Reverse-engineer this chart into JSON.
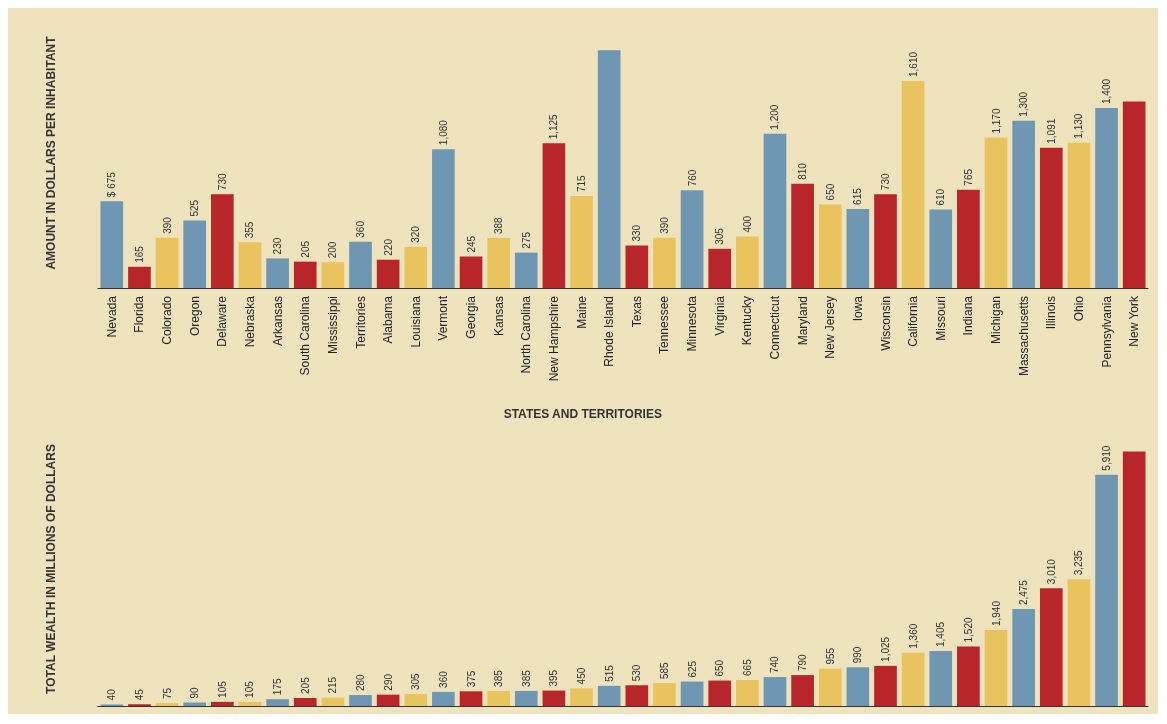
{
  "chart_data": [
    {
      "type": "bar",
      "ylabel": "AMOUNT IN DOLLARS PER INHABITANT",
      "xlabel": "STATES AND TERRITORIES",
      "tick_labels": "x",
      "categories": [
        "Nevada",
        "Florida",
        "Colorado",
        "Oregon",
        "Delaware",
        "Nebraska",
        "Arkansas",
        "South Carolina",
        "Mississippi",
        "Territories",
        "Alabama",
        "Louisiana",
        "Vermont",
        "Georgia",
        "Kansas",
        "North Carolina",
        "New Hampshire",
        "Maine",
        "Rhode Island",
        "Texas",
        "Tennessee",
        "Minnesota",
        "Virginia",
        "Kentucky",
        "Connecticut",
        "Maryland",
        "New Jersey",
        "Iowa",
        "Wisconsin",
        "California",
        "Missouri",
        "Indiana",
        "Michigan",
        "Massachusetts",
        "Illinois",
        "Ohio",
        "Pennsylvania",
        "New York"
      ],
      "values": [
        675,
        165,
        390,
        525,
        730,
        355,
        230,
        205,
        200,
        360,
        220,
        320,
        1080,
        245,
        388,
        275,
        1125,
        715,
        1850,
        330,
        390,
        760,
        305,
        400,
        1200,
        810,
        650,
        615,
        730,
        1610,
        610,
        765,
        1170,
        1300,
        1091,
        1130,
        1400,
        1450
      ],
      "value_labels": [
        "$ 675",
        "165",
        "390",
        "525",
        "730",
        "355",
        "230",
        "205",
        "200",
        "360",
        "220",
        "320",
        "1,080",
        "245",
        "388",
        "275",
        "1,125",
        "715",
        null,
        "330",
        "390",
        "760",
        "305",
        "400",
        "1,200",
        "810",
        "650",
        "615",
        "730",
        "1,610",
        "610",
        "765",
        "1,170",
        "1,300",
        "1,091",
        "1,130",
        "1,400",
        null
      ],
      "colors": [
        "#6f97b4",
        "#b8262c",
        "#e9c45e",
        "#6f97b4",
        "#b8262c",
        "#e9c45e",
        "#6f97b4",
        "#b8262c",
        "#e9c45e",
        "#6f97b4",
        "#b8262c",
        "#e9c45e",
        "#6f97b4",
        "#b8262c",
        "#e9c45e",
        "#6f97b4",
        "#b8262c",
        "#e9c45e",
        "#6f97b4",
        "#b8262c",
        "#e9c45e",
        "#6f97b4",
        "#b8262c",
        "#e9c45e",
        "#6f97b4",
        "#b8262c",
        "#e9c45e",
        "#6f97b4",
        "#b8262c",
        "#e9c45e",
        "#6f97b4",
        "#b8262c",
        "#e9c45e",
        "#6f97b4",
        "#b8262c",
        "#e9c45e",
        "#6f97b4",
        "#b8262c"
      ]
    },
    {
      "type": "bar",
      "ylabel": "TOTAL WEALTH IN MILLIONS OF DOLLARS",
      "tick_labels": false,
      "categories": [
        null,
        null,
        null,
        null,
        null,
        null,
        null,
        null,
        null,
        null,
        null,
        null,
        null,
        null,
        null,
        null,
        null,
        null,
        null,
        null,
        null,
        null,
        null,
        null,
        null,
        null,
        null,
        null,
        null,
        null,
        null,
        null,
        null,
        null,
        null,
        null,
        null,
        null
      ],
      "values": [
        40,
        45,
        75,
        90,
        105,
        105,
        175,
        205,
        215,
        280,
        290,
        305,
        360,
        375,
        385,
        385,
        395,
        450,
        515,
        530,
        585,
        625,
        650,
        665,
        740,
        790,
        955,
        990,
        1025,
        1360,
        1405,
        1520,
        1940,
        2475,
        3010,
        3235,
        5910,
        6500
      ],
      "value_labels": [
        "40",
        "45",
        "75",
        "90",
        "105",
        "105",
        "175",
        "205",
        "215",
        "280",
        "290",
        "305",
        "360",
        "375",
        "385",
        "385",
        "395",
        "450",
        "515",
        "530",
        "585",
        "625",
        "650",
        "665",
        "740",
        "790",
        "955",
        "990",
        "1,025",
        "1,360",
        "1,405",
        "1,520",
        "1,940",
        "2,475",
        "3,010",
        "3,235",
        "5,910",
        null
      ],
      "colors": [
        "#6f97b4",
        "#b8262c",
        "#e9c45e",
        "#6f97b4",
        "#b8262c",
        "#e9c45e",
        "#6f97b4",
        "#b8262c",
        "#e9c45e",
        "#6f97b4",
        "#b8262c",
        "#e9c45e",
        "#6f97b4",
        "#b8262c",
        "#e9c45e",
        "#6f97b4",
        "#b8262c",
        "#e9c45e",
        "#6f97b4",
        "#b8262c",
        "#e9c45e",
        "#6f97b4",
        "#b8262c",
        "#e9c45e",
        "#6f97b4",
        "#b8262c",
        "#e9c45e",
        "#6f97b4",
        "#b8262c",
        "#e9c45e",
        "#6f97b4",
        "#b8262c",
        "#e9c45e",
        "#6f97b4",
        "#b8262c",
        "#e9c45e",
        "#6f97b4",
        "#b8262c"
      ]
    }
  ]
}
